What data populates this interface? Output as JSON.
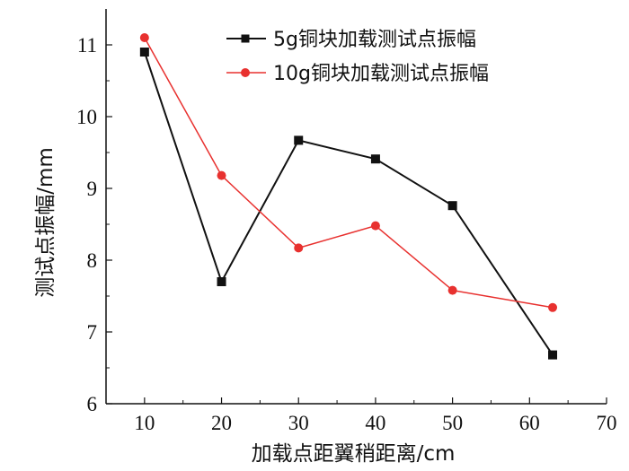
{
  "chart_data": {
    "type": "line",
    "title": "",
    "xlabel": "加载点距翼稍距离/cm",
    "ylabel": "测试点振幅/mm",
    "xlim": [
      5,
      70
    ],
    "ylim": [
      6,
      11.5
    ],
    "x_ticks": [
      "10",
      "20",
      "30",
      "40",
      "50",
      "60",
      "70"
    ],
    "y_ticks": [
      "6",
      "7",
      "8",
      "9",
      "10",
      "11"
    ],
    "grid": false,
    "legend_position": "top-right",
    "series": [
      {
        "name": "5g铜块加载测试点振幅",
        "marker": "square",
        "color": "#111111",
        "x": [
          10,
          20,
          30,
          40,
          50,
          63
        ],
        "y": [
          10.9,
          7.7,
          9.67,
          9.41,
          8.76,
          6.68
        ]
      },
      {
        "name": "10g铜块加载测试点振幅",
        "marker": "circle",
        "color": "#e8312f",
        "x": [
          10,
          20,
          30,
          40,
          50,
          63
        ],
        "y": [
          11.1,
          9.18,
          8.17,
          8.48,
          7.58,
          7.34
        ]
      }
    ]
  }
}
